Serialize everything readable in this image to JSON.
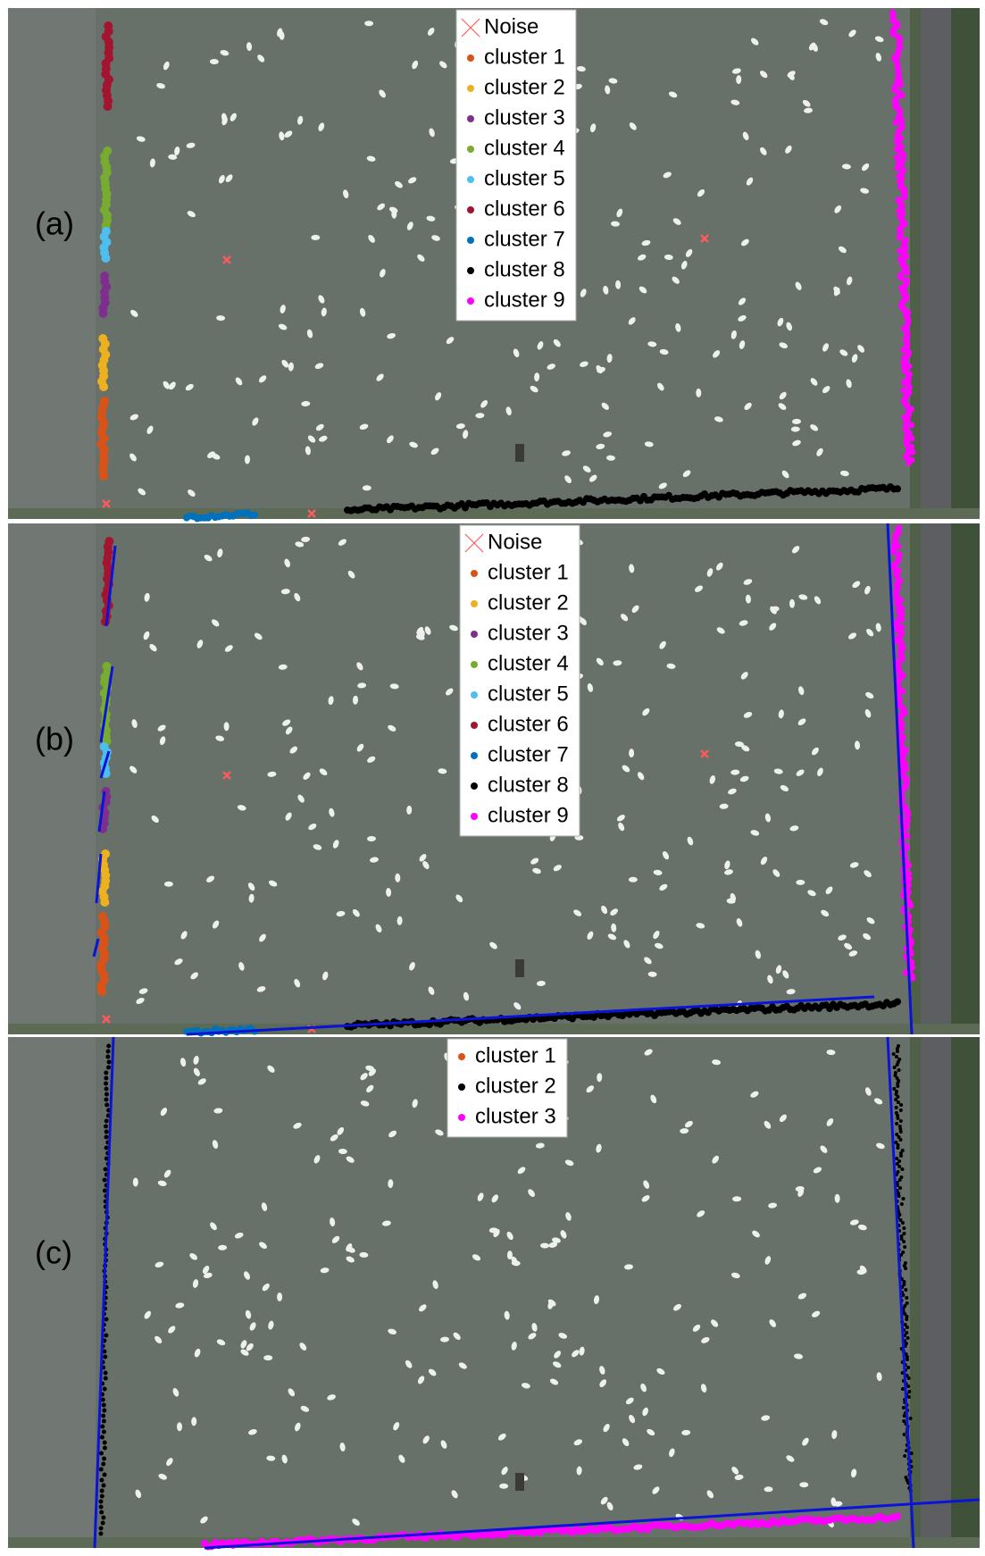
{
  "panels": [
    {
      "label": "(a)",
      "legend": [
        {
          "name": "Noise",
          "color": "#ff5a5a",
          "marker": "x"
        },
        {
          "name": "cluster 1",
          "color": "#d95319"
        },
        {
          "name": "cluster 2",
          "color": "#edb120"
        },
        {
          "name": "cluster 3",
          "color": "#7e2f8e"
        },
        {
          "name": "cluster 4",
          "color": "#77ac30"
        },
        {
          "name": "cluster 5",
          "color": "#4dbeee"
        },
        {
          "name": "cluster 6",
          "color": "#a2142f"
        },
        {
          "name": "cluster 7",
          "color": "#0072bd"
        },
        {
          "name": "cluster 8",
          "color": "#000000"
        },
        {
          "name": "cluster 9",
          "color": "#ff00ff"
        }
      ]
    },
    {
      "label": "(b)",
      "legend": [
        {
          "name": "Noise",
          "color": "#ff5a5a",
          "marker": "x"
        },
        {
          "name": "cluster 1",
          "color": "#d95319"
        },
        {
          "name": "cluster 2",
          "color": "#edb120"
        },
        {
          "name": "cluster 3",
          "color": "#7e2f8e"
        },
        {
          "name": "cluster 4",
          "color": "#77ac30"
        },
        {
          "name": "cluster 5",
          "color": "#4dbeee"
        },
        {
          "name": "cluster 6",
          "color": "#a2142f"
        },
        {
          "name": "cluster 7",
          "color": "#0072bd"
        },
        {
          "name": "cluster 8",
          "color": "#000000"
        },
        {
          "name": "cluster 9",
          "color": "#ff00ff"
        }
      ]
    },
    {
      "label": "(c)",
      "legend": [
        {
          "name": "cluster 1",
          "color": "#d95319"
        },
        {
          "name": "cluster 2",
          "color": "#000000"
        },
        {
          "name": "cluster 3",
          "color": "#ff00ff"
        }
      ]
    }
  ]
}
